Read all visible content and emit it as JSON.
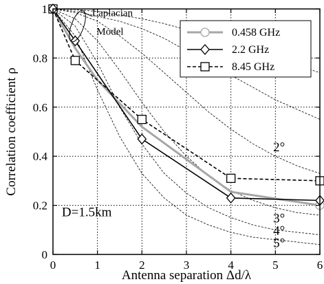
{
  "chart_data": {
    "type": "line",
    "title": "",
    "xlabel": "Antenna separation Δd/λ",
    "ylabel": "Correlation coefficient ρ",
    "xlim": [
      0,
      6
    ],
    "ylim": [
      0,
      1
    ],
    "x_ticks": [
      "0",
      "1",
      "2",
      "3",
      "4",
      "5",
      "6"
    ],
    "y_ticks": [
      "0",
      "0.2",
      "0.4",
      "0.6",
      "0.8",
      "1"
    ],
    "grid": true,
    "legend_position": "top-right",
    "series": [
      {
        "name": "0.458 GHz",
        "style": "solid",
        "color": "#a6a6a6",
        "marker": "circle",
        "x": [
          0,
          0.5,
          1,
          2,
          4,
          6
        ],
        "y": [
          1.0,
          0.84,
          0.71,
          0.52,
          0.255,
          0.2
        ],
        "marker_x": [
          0,
          6
        ],
        "marker_y": [
          1.0,
          0.2
        ]
      },
      {
        "name": "2.2   GHz",
        "style": "solid",
        "color": "#000000",
        "marker": "diamond",
        "x": [
          0,
          0.5,
          2,
          4,
          6
        ],
        "y": [
          1.0,
          0.87,
          0.47,
          0.23,
          0.22
        ]
      },
      {
        "name": "8.45   GHz",
        "style": "dashed",
        "color": "#000000",
        "marker": "square",
        "x": [
          0,
          0.5,
          2,
          4,
          6
        ],
        "y": [
          1.0,
          0.79,
          0.55,
          0.31,
          0.3
        ]
      }
    ],
    "model_curves": {
      "label": "Laplacian Model",
      "color": "#000000",
      "style": "thin-dashed",
      "curves": [
        {
          "spread": "2°",
          "x": [
            0,
            0.5,
            1,
            1.5,
            2,
            2.5,
            3,
            3.5,
            4,
            4.5,
            5,
            5.5,
            6
          ],
          "y": [
            1,
            0.985,
            0.95,
            0.89,
            0.82,
            0.74,
            0.66,
            0.58,
            0.51,
            0.45,
            0.4,
            0.36,
            0.33
          ]
        },
        {
          "spread": "3°",
          "x": [
            0,
            0.5,
            1,
            1.5,
            2,
            2.5,
            3,
            3.5,
            4,
            4.5,
            5,
            5.5,
            6
          ],
          "y": [
            1,
            0.96,
            0.87,
            0.75,
            0.62,
            0.5,
            0.4,
            0.32,
            0.26,
            0.22,
            0.19,
            0.17,
            0.16
          ]
        },
        {
          "spread": "4°",
          "x": [
            0,
            0.5,
            1,
            1.5,
            2,
            2.5,
            3,
            3.5,
            4,
            4.5,
            5,
            5.5,
            6
          ],
          "y": [
            1,
            0.93,
            0.78,
            0.6,
            0.45,
            0.33,
            0.25,
            0.19,
            0.15,
            0.12,
            0.1,
            0.09,
            0.08
          ]
        },
        {
          "spread": "5°",
          "x": [
            0,
            0.5,
            1,
            1.5,
            2,
            2.5,
            3,
            3.5,
            4,
            4.5,
            5,
            5.5,
            6
          ],
          "y": [
            1,
            0.89,
            0.67,
            0.48,
            0.33,
            0.23,
            0.16,
            0.12,
            0.09,
            0.07,
            0.06,
            0.05,
            0.04
          ]
        },
        {
          "spread": "",
          "x": [
            0,
            0.5,
            1,
            1.5,
            2,
            2.5,
            3,
            3.5,
            4,
            4.5,
            5,
            5.5,
            6
          ],
          "y": [
            1,
            0.99,
            0.97,
            0.95,
            0.92,
            0.88,
            0.83,
            0.78,
            0.73,
            0.68,
            0.63,
            0.59,
            0.55
          ]
        },
        {
          "spread": "",
          "x": [
            0,
            0.5,
            1,
            1.5,
            2,
            2.5,
            3,
            3.5,
            4,
            4.5,
            5,
            5.5,
            6
          ],
          "y": [
            1,
            0.997,
            0.99,
            0.975,
            0.96,
            0.94,
            0.915,
            0.89,
            0.86,
            0.83,
            0.8,
            0.77,
            0.74
          ]
        }
      ]
    },
    "annotations": [
      {
        "text": "Laplacian",
        "x": 0.88,
        "y": 0.97
      },
      {
        "text": "Model",
        "x": 0.98,
        "y": 0.895
      },
      {
        "text": "D=1.5km",
        "x": 0.2,
        "y": 0.155
      },
      {
        "text": "2°",
        "x": 4.95,
        "y": 0.42
      },
      {
        "text": "3°",
        "x": 4.95,
        "y": 0.13
      },
      {
        "text": "4°",
        "x": 4.95,
        "y": 0.08
      },
      {
        "text": "5°",
        "x": 4.95,
        "y": 0.03
      }
    ]
  }
}
